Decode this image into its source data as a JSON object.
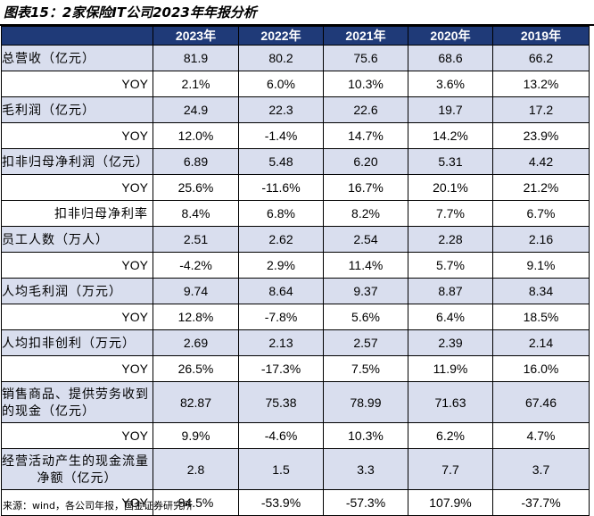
{
  "title": "图表15：2家保险IT公司2023年年报分析",
  "columns": [
    "2023年",
    "2022年",
    "2021年",
    "2020年",
    "2019年"
  ],
  "rows": [
    {
      "label": "总营收（亿元）",
      "values": [
        "81.9",
        "80.2",
        "75.6",
        "68.6",
        "66.2"
      ]
    },
    {
      "label": "YOY",
      "values": [
        "2.1%",
        "6.0%",
        "10.3%",
        "3.6%",
        "13.2%"
      ]
    },
    {
      "label": "毛利润（亿元）",
      "values": [
        "24.9",
        "22.3",
        "22.6",
        "19.7",
        "17.2"
      ]
    },
    {
      "label": "YOY",
      "values": [
        "12.0%",
        "-1.4%",
        "14.7%",
        "14.2%",
        "23.9%"
      ]
    },
    {
      "label": "扣非归母净利润（亿元）",
      "values": [
        "6.89",
        "5.48",
        "6.20",
        "5.31",
        "4.42"
      ]
    },
    {
      "label": "YOY",
      "values": [
        "25.6%",
        "-11.6%",
        "16.7%",
        "20.1%",
        "21.2%"
      ]
    },
    {
      "label": "扣非归母净利率",
      "values": [
        "8.4%",
        "6.8%",
        "8.2%",
        "7.7%",
        "6.7%"
      ]
    },
    {
      "label": "员工人数（万人）",
      "values": [
        "2.51",
        "2.62",
        "2.54",
        "2.28",
        "2.16"
      ]
    },
    {
      "label": "YOY",
      "values": [
        "-4.2%",
        "2.9%",
        "11.4%",
        "5.7%",
        "9.1%"
      ]
    },
    {
      "label": "人均毛利润（万元）",
      "values": [
        "9.74",
        "8.64",
        "9.37",
        "8.87",
        "8.34"
      ]
    },
    {
      "label": "YOY",
      "values": [
        "12.8%",
        "-7.8%",
        "5.6%",
        "6.4%",
        "18.5%"
      ]
    },
    {
      "label": "人均扣非创利（万元）",
      "values": [
        "2.69",
        "2.13",
        "2.57",
        "2.39",
        "2.14"
      ]
    },
    {
      "label": "YOY",
      "values": [
        "26.5%",
        "-17.3%",
        "7.5%",
        "11.9%",
        "16.0%"
      ]
    },
    {
      "label_line1": "销售商品、提供劳务收到",
      "label_line2": "的现金（亿元）",
      "values": [
        "82.87",
        "75.38",
        "78.99",
        "71.63",
        "67.46"
      ]
    },
    {
      "label": "YOY",
      "values": [
        "9.9%",
        "-4.6%",
        "10.3%",
        "6.2%",
        "4.7%"
      ]
    },
    {
      "label_line1": "经营活动产生的现金流量",
      "label_line2": "净额（亿元）",
      "values": [
        "2.8",
        "1.5",
        "3.3",
        "7.7",
        "3.7"
      ]
    },
    {
      "label": "YOY",
      "values": [
        "84.5%",
        "-53.9%",
        "-57.3%",
        "107.9%",
        "-37.7%"
      ]
    }
  ],
  "source": "来源：wind，各公司年报，国金证券研究所"
}
